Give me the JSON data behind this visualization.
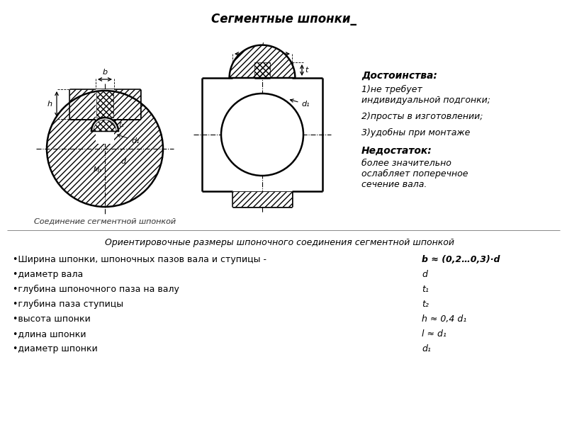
{
  "title": "Сегментные шпонки_",
  "subtitle_diagram": "Соединение сегментной шпонкой",
  "advantages_title": "Достоинства:",
  "advantages": [
    "1)не требует\nиндивидуальной подгонки;",
    "2)просты в изготовлении;",
    "3)удобны при монтаже"
  ],
  "disadvantage_title": "Недостаток:",
  "disadvantage": "более значительно\nослабляет поперечное\nсечение вала.",
  "orient_title": "Ориентировочные размеры шпоночного соединения сегментной шпонкой",
  "params": [
    [
      "•Ширина шпонки, шпоночных пазов вала и ступицы -",
      "b ≈ (0,2…0,3)·d"
    ],
    [
      "•диаметр вала",
      "d"
    ],
    [
      "•глубина шпоночного паза на валу",
      "t₁"
    ],
    [
      "•глубина паза ступицы",
      "t₂"
    ],
    [
      "•высота шпонки",
      "h ≈ 0,4 d₁"
    ],
    [
      "•длина шпонки",
      "l ≈ d₁"
    ],
    [
      "•диаметр шпонки",
      "d₁"
    ]
  ],
  "bg_color": "#ffffff"
}
